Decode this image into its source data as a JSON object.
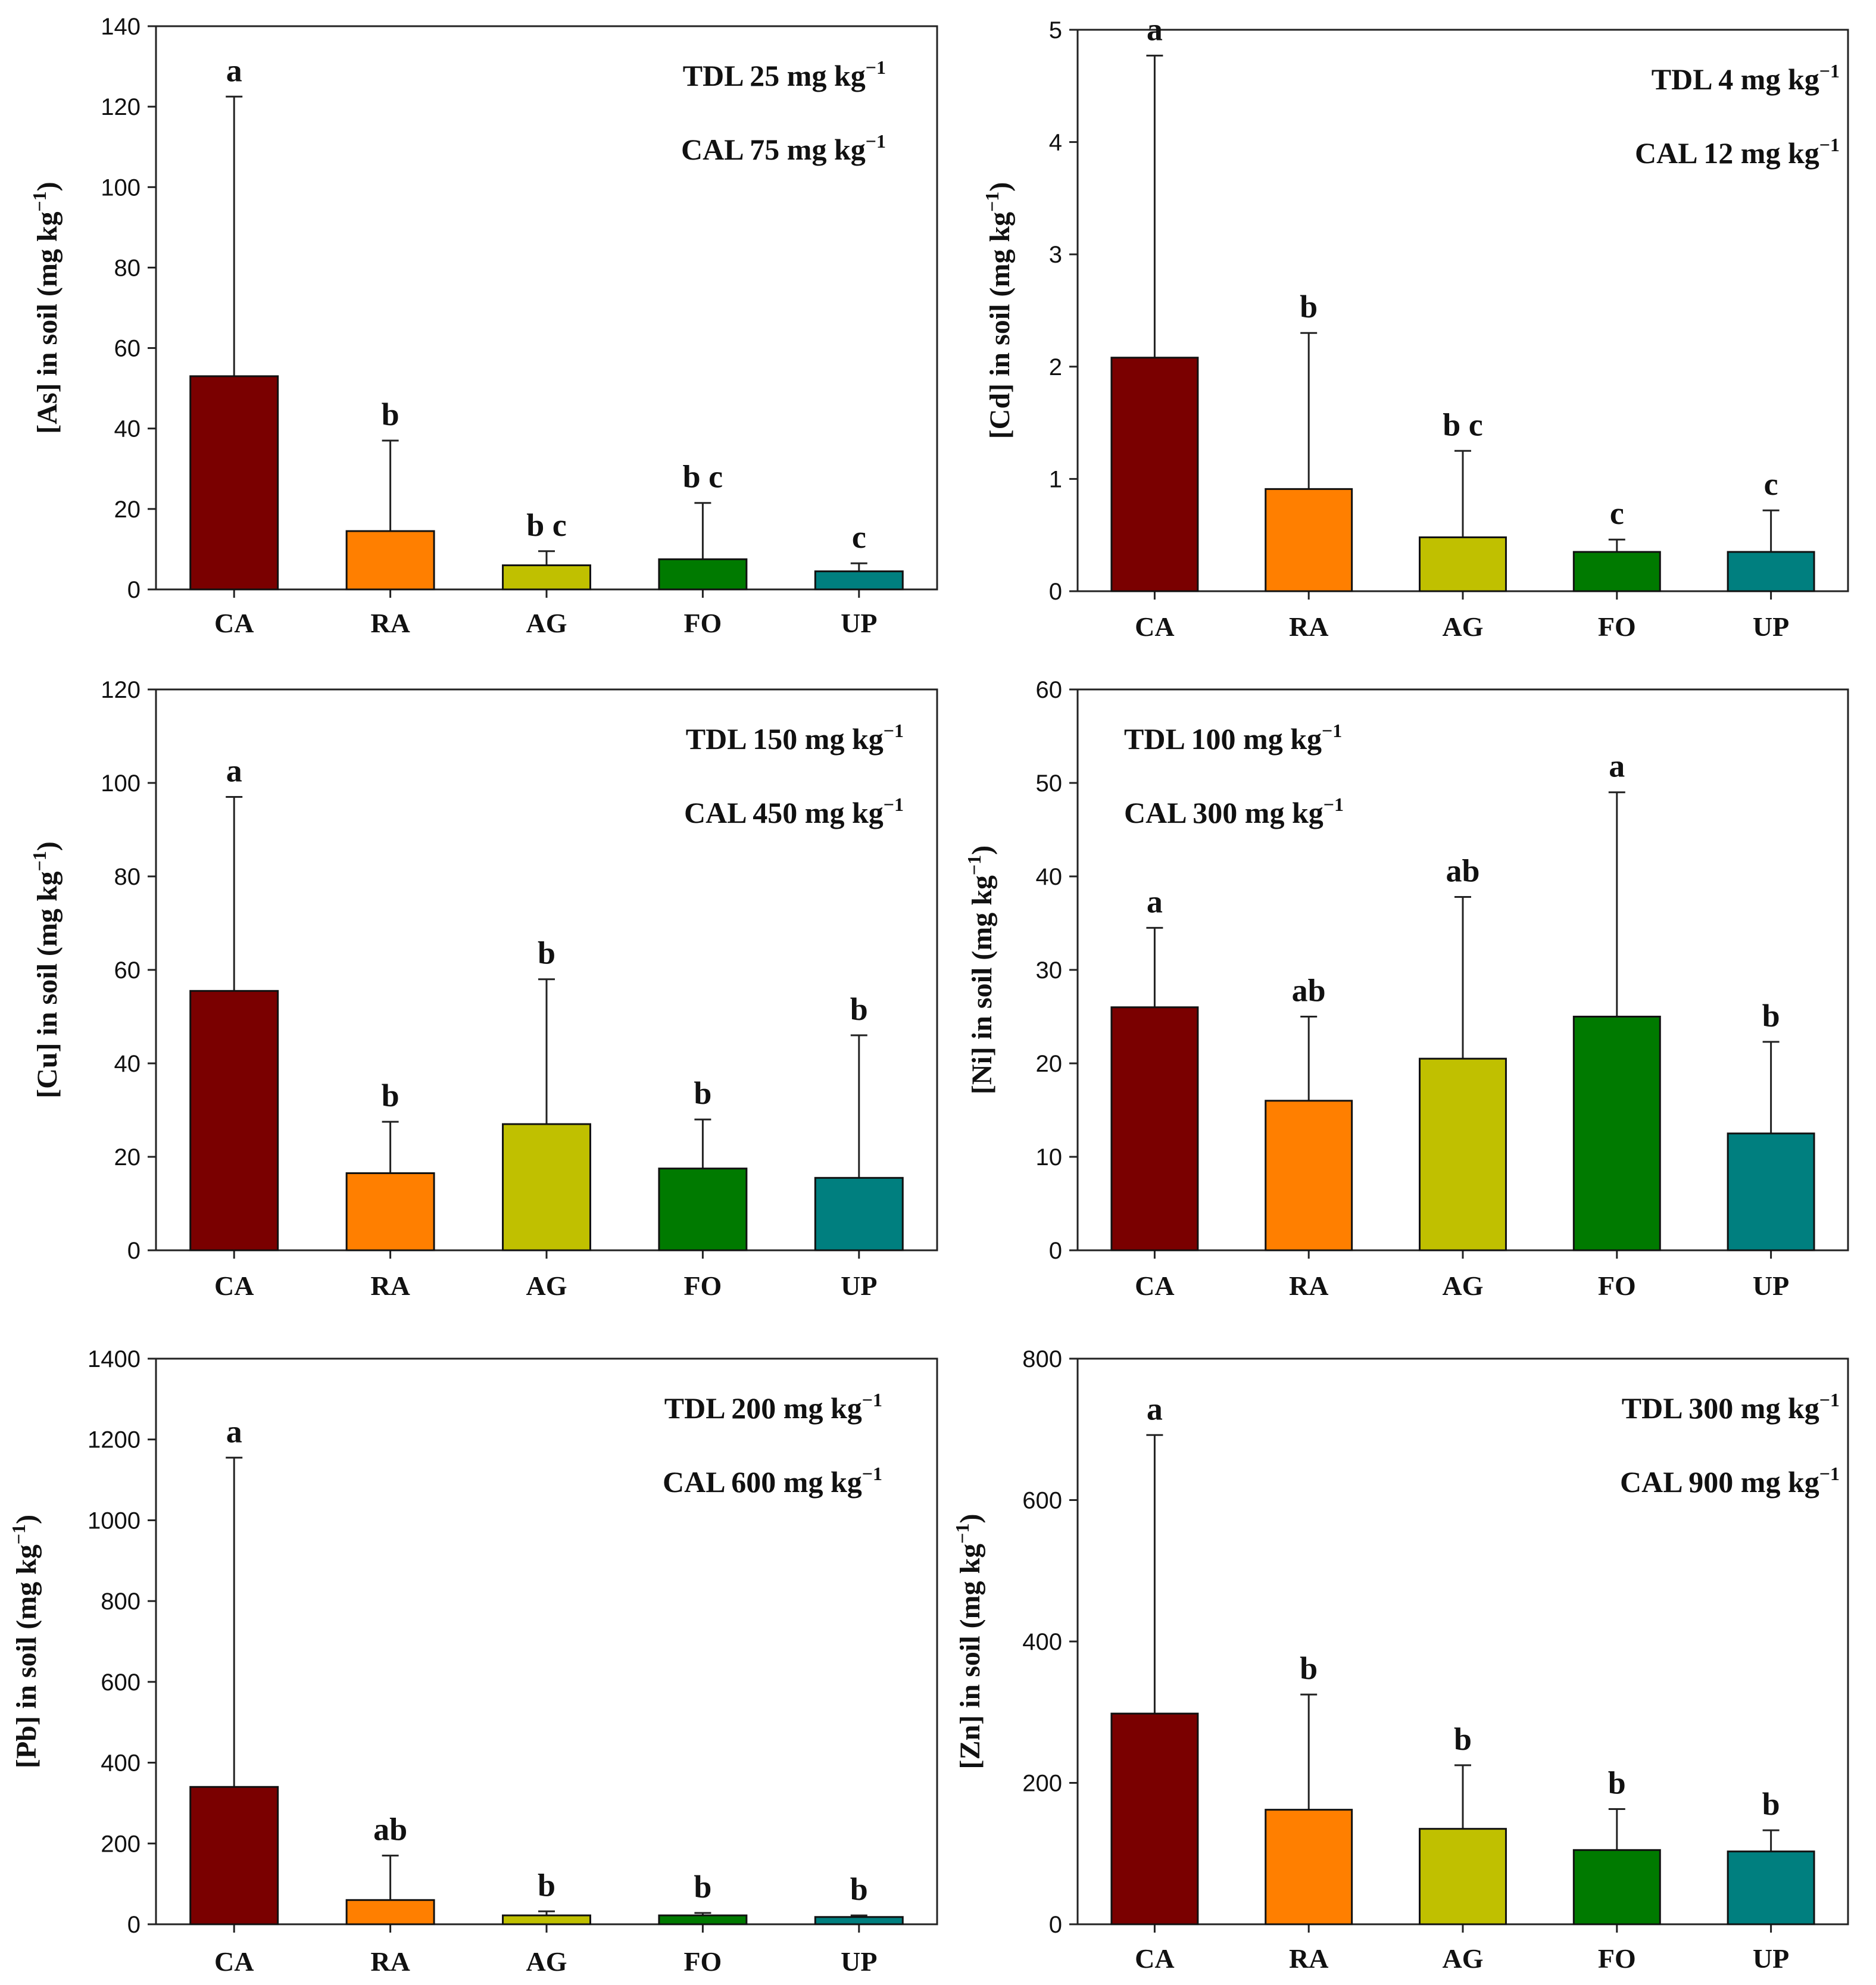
{
  "chart_data": [
    {
      "type": "bar",
      "panel": "As",
      "ylabel": "[As] in soil (mg kg−1)",
      "ylabel_main": "[As] in soil (mg kg",
      "ylabel_sup": "−1",
      "ylabel_tail": ")",
      "ylim": [
        0,
        140
      ],
      "yticks": [
        0,
        20,
        40,
        60,
        80,
        100,
        120,
        140
      ],
      "categories": [
        "CA",
        "RA",
        "AG",
        "FO",
        "UP"
      ],
      "values": [
        53,
        14.5,
        6,
        7.5,
        4.5
      ],
      "error_upper": [
        122.5,
        37,
        9.5,
        21.5,
        6.5
      ],
      "significance": [
        "a",
        "b",
        "b c",
        "b c",
        "c"
      ],
      "annotations": [
        {
          "text": "TDL 25 mg kg",
          "sup": "−1"
        },
        {
          "text": "CAL 75 mg kg",
          "sup": "−1"
        }
      ],
      "annotation_position": "top-right"
    },
    {
      "type": "bar",
      "panel": "Cd",
      "ylabel": "[Cd] in soil (mg kg−1)",
      "ylabel_main": "[Cd] in soil (mg kg",
      "ylabel_sup": "−1",
      "ylabel_tail": ")",
      "ylim": [
        0,
        5
      ],
      "yticks": [
        0,
        1,
        2,
        3,
        4,
        5
      ],
      "categories": [
        "CA",
        "RA",
        "AG",
        "FO",
        "UP"
      ],
      "values": [
        2.08,
        0.91,
        0.48,
        0.35,
        0.35
      ],
      "error_upper": [
        4.77,
        2.3,
        1.25,
        0.46,
        0.72
      ],
      "significance": [
        "a",
        "b",
        "b c",
        "c",
        "c"
      ],
      "annotations": [
        {
          "text": "TDL 4 mg kg",
          "sup": "−1"
        },
        {
          "text": "CAL 12 mg kg",
          "sup": "−1"
        }
      ],
      "annotation_position": "top-right"
    },
    {
      "type": "bar",
      "panel": "Cu",
      "ylabel": "[Cu] in soil (mg kg−1)",
      "ylabel_main": "[Cu] in soil (mg kg",
      "ylabel_sup": "−1",
      "ylabel_tail": ")",
      "ylim": [
        0,
        120
      ],
      "yticks": [
        0,
        20,
        40,
        60,
        80,
        100,
        120
      ],
      "categories": [
        "CA",
        "RA",
        "AG",
        "FO",
        "UP"
      ],
      "values": [
        55.5,
        16.5,
        27,
        17.5,
        15.5
      ],
      "error_upper": [
        97,
        27.5,
        58,
        28,
        46
      ],
      "significance": [
        "a",
        "b",
        "b",
        "b",
        "b"
      ],
      "annotations": [
        {
          "text": "TDL 150 mg kg",
          "sup": "−1"
        },
        {
          "text": "CAL 450 mg kg",
          "sup": "−1"
        }
      ],
      "annotation_position": "top-right"
    },
    {
      "type": "bar",
      "panel": "Ni",
      "ylabel": "[Ni] in soil (mg kg−1)",
      "ylabel_main": "[Ni] in soil (mg kg",
      "ylabel_sup": "−1",
      "ylabel_tail": ")",
      "ylim": [
        0,
        60
      ],
      "yticks": [
        0,
        10,
        20,
        30,
        40,
        50,
        60
      ],
      "categories": [
        "CA",
        "RA",
        "AG",
        "FO",
        "UP"
      ],
      "values": [
        26,
        16,
        20.5,
        25,
        12.5
      ],
      "error_upper": [
        34.5,
        25,
        37.8,
        49,
        22.3
      ],
      "significance": [
        "a",
        "ab",
        "ab",
        "a",
        "b"
      ],
      "annotations": [
        {
          "text": "TDL 100 mg kg",
          "sup": "−1"
        },
        {
          "text": "CAL 300 mg kg",
          "sup": "−1"
        }
      ],
      "annotation_position": "top-left"
    },
    {
      "type": "bar",
      "panel": "Pb",
      "ylabel": "[Pb] in soil (mg kg−1)",
      "ylabel_main": "[Pb] in soil (mg kg",
      "ylabel_sup": "−1",
      "ylabel_tail": ")",
      "ylim": [
        0,
        1400
      ],
      "yticks": [
        0,
        200,
        400,
        600,
        800,
        1000,
        1200,
        1400
      ],
      "categories": [
        "CA",
        "RA",
        "AG",
        "FO",
        "UP"
      ],
      "values": [
        340,
        60,
        22,
        22,
        18
      ],
      "error_upper": [
        1155,
        170,
        32,
        28,
        22
      ],
      "significance": [
        "a",
        "ab",
        "b",
        "b",
        "b"
      ],
      "annotations": [
        {
          "text": "TDL 200 mg kg",
          "sup": "−1"
        },
        {
          "text": "CAL 600 mg kg",
          "sup": "−1"
        }
      ],
      "annotation_position": "top-right"
    },
    {
      "type": "bar",
      "panel": "Zn",
      "ylabel": "[Zn] in soil (mg kg−1)",
      "ylabel_main": "[Zn] in soil (mg kg",
      "ylabel_sup": "−1",
      "ylabel_tail": ")",
      "ylim": [
        0,
        800
      ],
      "yticks": [
        0,
        200,
        400,
        600,
        800
      ],
      "categories": [
        "CA",
        "RA",
        "AG",
        "FO",
        "UP"
      ],
      "values": [
        298,
        162,
        135,
        105,
        103
      ],
      "error_upper": [
        692,
        325,
        225,
        163,
        133
      ],
      "significance": [
        "a",
        "b",
        "b",
        "b",
        "b"
      ],
      "annotations": [
        {
          "text": "TDL 300 mg kg",
          "sup": "−1"
        },
        {
          "text": "CAL 900 mg kg",
          "sup": "−1"
        }
      ],
      "annotation_position": "top-right"
    }
  ],
  "colors": {
    "CA": "#7a0000",
    "RA": "#ff7f00",
    "AG": "#c0c000",
    "FO": "#007a00",
    "UP": "#007f7f",
    "axis": "#222222",
    "bar_edge": "#111111"
  }
}
